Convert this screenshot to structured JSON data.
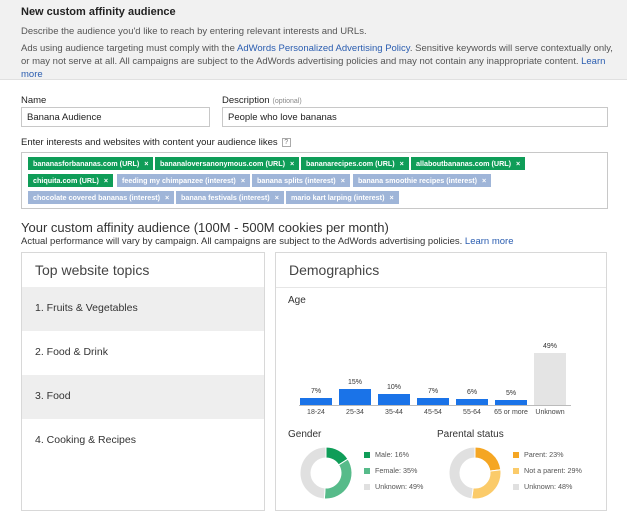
{
  "header": {
    "title": "New custom affinity audience",
    "description": "Describe the audience you'd like to reach by entering relevant interests and URLs.",
    "policy_prefix": "Ads using audience targeting must comply with the ",
    "policy_link": "AdWords Personalized Advertising Policy",
    "policy_suffix": ". Sensitive keywords will serve contextually only, or may not serve at all. All campaigns are subject to the AdWords advertising policies and may not contain any inappropriate content. ",
    "learn_more": "Learn more"
  },
  "form": {
    "name_label": "Name",
    "name_value": "Banana Audience",
    "desc_label": "Description",
    "desc_optional": "(optional)",
    "desc_value": "People who love bananas",
    "interests_label": "Enter interests and websites with content your audience likes",
    "help_icon": "?"
  },
  "chips": [
    {
      "text": "bananasforbananas.com (URL)",
      "kind": "url"
    },
    {
      "text": "bananaloversanonymous.com (URL)",
      "kind": "url"
    },
    {
      "text": "bananarecipes.com (URL)",
      "kind": "url"
    },
    {
      "text": "allaboutbananas.com (URL)",
      "kind": "url"
    },
    {
      "text": "chiquita.com (URL)",
      "kind": "url"
    },
    {
      "text": "feeding my chimpanzee (interest)",
      "kind": "interest"
    },
    {
      "text": "banana splits (interest)",
      "kind": "interest"
    },
    {
      "text": "banana smoothie recipes (interest)",
      "kind": "interest"
    },
    {
      "text": "chocolate covered bananas (interest)",
      "kind": "interest"
    },
    {
      "text": "banana festivals (interest)",
      "kind": "interest"
    },
    {
      "text": "mario kart larping (interest)",
      "kind": "interest"
    }
  ],
  "chip_remove": "×",
  "audience": {
    "title": "Your custom affinity audience (100M - 500M cookies per month)",
    "subtitle": "Actual performance will vary by campaign. All campaigns are subject to the AdWords advertising policies. ",
    "learn_more": "Learn more"
  },
  "topics": {
    "title": "Top website topics",
    "items": [
      "1. Fruits & Vegetables",
      "2. Food & Drink",
      "3. Food",
      "4. Cooking & Recipes"
    ]
  },
  "demographics": {
    "title": "Demographics",
    "age_label": "Age",
    "gender_label": "Gender",
    "parental_label": "Parental status",
    "gender_legend": [
      {
        "label": "Male: 16%",
        "value": 16,
        "color": "#0f9d58"
      },
      {
        "label": "Female: 35%",
        "value": 35,
        "color": "#57bb8a"
      },
      {
        "label": "Unknown: 49%",
        "value": 49,
        "color": "#e0e0e0"
      }
    ],
    "parental_legend": [
      {
        "label": "Parent: 23%",
        "value": 23,
        "color": "#f5a623"
      },
      {
        "label": "Not a parent: 29%",
        "value": 29,
        "color": "#fbcb6a"
      },
      {
        "label": "Unknown: 48%",
        "value": 48,
        "color": "#e0e0e0"
      }
    ]
  },
  "chart_data": {
    "type": "bar",
    "categories": [
      "18-24",
      "25-34",
      "35-44",
      "45-54",
      "55-64",
      "65 or more",
      "Unknown"
    ],
    "values": [
      7,
      15,
      10,
      7,
      6,
      5,
      49
    ],
    "value_labels": [
      "7%",
      "15%",
      "10%",
      "7%",
      "6%",
      "5%",
      "49%"
    ],
    "ylim": [
      0,
      49
    ],
    "colors": {
      "known": "#1a73e8",
      "unknown": "#e4e4e4"
    }
  }
}
